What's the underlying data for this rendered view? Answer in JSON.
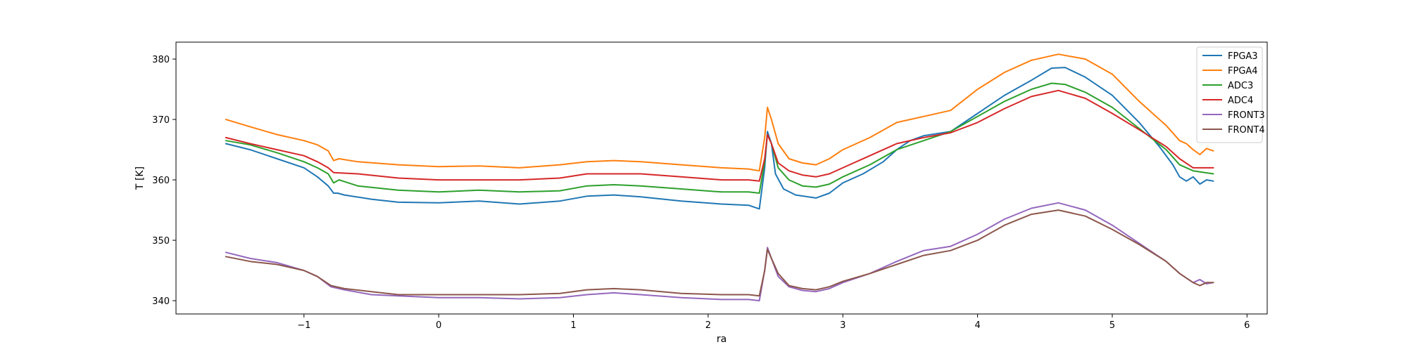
{
  "chart_data": {
    "type": "line",
    "title": "",
    "xlabel": "ra",
    "ylabel": "T [K]",
    "xlim": [
      -1.95,
      6.15
    ],
    "ylim": [
      337.8,
      382.8
    ],
    "xticks": [
      -1,
      0,
      1,
      2,
      3,
      4,
      5,
      6
    ],
    "xtick_labels": [
      "−1",
      "0",
      "1",
      "2",
      "3",
      "4",
      "5",
      "6"
    ],
    "yticks": [
      340,
      350,
      360,
      370,
      380
    ],
    "ytick_labels": [
      "340",
      "350",
      "360",
      "370",
      "380"
    ],
    "grid": false,
    "legend_position": "top-right",
    "series": [
      {
        "name": "FPGA3",
        "color": "#1f77b4",
        "points": [
          [
            -1.58,
            366.0
          ],
          [
            -1.4,
            365.0
          ],
          [
            -1.2,
            363.5
          ],
          [
            -1.0,
            362.0
          ],
          [
            -0.9,
            360.5
          ],
          [
            -0.82,
            359.0
          ],
          [
            -0.78,
            357.8
          ],
          [
            -0.75,
            357.8
          ],
          [
            -0.7,
            357.5
          ],
          [
            -0.5,
            356.8
          ],
          [
            -0.3,
            356.3
          ],
          [
            0.0,
            356.2
          ],
          [
            0.3,
            356.5
          ],
          [
            0.6,
            356.0
          ],
          [
            0.9,
            356.5
          ],
          [
            1.1,
            357.3
          ],
          [
            1.3,
            357.5
          ],
          [
            1.5,
            357.2
          ],
          [
            1.8,
            356.5
          ],
          [
            2.1,
            356.0
          ],
          [
            2.3,
            355.8
          ],
          [
            2.38,
            355.2
          ],
          [
            2.42,
            362.0
          ],
          [
            2.44,
            368.0
          ],
          [
            2.47,
            366.0
          ],
          [
            2.5,
            361.0
          ],
          [
            2.56,
            358.5
          ],
          [
            2.65,
            357.5
          ],
          [
            2.8,
            357.0
          ],
          [
            2.9,
            357.8
          ],
          [
            3.0,
            359.5
          ],
          [
            3.15,
            361.0
          ],
          [
            3.3,
            363.0
          ],
          [
            3.4,
            365.0
          ],
          [
            3.5,
            366.5
          ],
          [
            3.6,
            367.3
          ],
          [
            3.8,
            368.0
          ],
          [
            4.0,
            371.0
          ],
          [
            4.2,
            374.0
          ],
          [
            4.4,
            376.5
          ],
          [
            4.55,
            378.5
          ],
          [
            4.65,
            378.6
          ],
          [
            4.8,
            377.0
          ],
          [
            5.0,
            374.0
          ],
          [
            5.2,
            369.5
          ],
          [
            5.35,
            365.5
          ],
          [
            5.45,
            362.5
          ],
          [
            5.5,
            360.5
          ],
          [
            5.55,
            359.8
          ],
          [
            5.6,
            360.5
          ],
          [
            5.65,
            359.3
          ],
          [
            5.7,
            360.0
          ],
          [
            5.75,
            359.8
          ]
        ]
      },
      {
        "name": "FPGA4",
        "color": "#ff7f0e",
        "points": [
          [
            -1.58,
            370.0
          ],
          [
            -1.4,
            368.8
          ],
          [
            -1.2,
            367.5
          ],
          [
            -1.0,
            366.5
          ],
          [
            -0.9,
            365.8
          ],
          [
            -0.82,
            364.8
          ],
          [
            -0.78,
            363.2
          ],
          [
            -0.74,
            363.5
          ],
          [
            -0.6,
            363.0
          ],
          [
            -0.3,
            362.5
          ],
          [
            0.0,
            362.2
          ],
          [
            0.3,
            362.3
          ],
          [
            0.6,
            362.0
          ],
          [
            0.9,
            362.5
          ],
          [
            1.1,
            363.0
          ],
          [
            1.3,
            363.2
          ],
          [
            1.5,
            363.0
          ],
          [
            1.8,
            362.5
          ],
          [
            2.1,
            362.0
          ],
          [
            2.3,
            361.8
          ],
          [
            2.38,
            361.5
          ],
          [
            2.42,
            367.0
          ],
          [
            2.44,
            372.0
          ],
          [
            2.47,
            370.0
          ],
          [
            2.52,
            366.0
          ],
          [
            2.6,
            363.5
          ],
          [
            2.7,
            362.8
          ],
          [
            2.8,
            362.5
          ],
          [
            2.9,
            363.5
          ],
          [
            3.0,
            365.0
          ],
          [
            3.2,
            367.0
          ],
          [
            3.4,
            369.5
          ],
          [
            3.6,
            370.5
          ],
          [
            3.8,
            371.5
          ],
          [
            4.0,
            375.0
          ],
          [
            4.2,
            377.8
          ],
          [
            4.4,
            379.8
          ],
          [
            4.6,
            380.8
          ],
          [
            4.8,
            380.0
          ],
          [
            5.0,
            377.5
          ],
          [
            5.2,
            373.0
          ],
          [
            5.4,
            369.0
          ],
          [
            5.5,
            366.5
          ],
          [
            5.55,
            366.0
          ],
          [
            5.6,
            365.0
          ],
          [
            5.65,
            364.2
          ],
          [
            5.7,
            365.2
          ],
          [
            5.75,
            364.8
          ]
        ]
      },
      {
        "name": "ADC3",
        "color": "#2ca02c",
        "points": [
          [
            -1.58,
            366.5
          ],
          [
            -1.4,
            365.8
          ],
          [
            -1.2,
            364.5
          ],
          [
            -1.0,
            363.0
          ],
          [
            -0.9,
            362.0
          ],
          [
            -0.82,
            361.0
          ],
          [
            -0.78,
            359.5
          ],
          [
            -0.74,
            360.0
          ],
          [
            -0.6,
            359.0
          ],
          [
            -0.3,
            358.3
          ],
          [
            0.0,
            358.0
          ],
          [
            0.3,
            358.3
          ],
          [
            0.6,
            358.0
          ],
          [
            0.9,
            358.2
          ],
          [
            1.1,
            359.0
          ],
          [
            1.3,
            359.2
          ],
          [
            1.5,
            359.0
          ],
          [
            1.8,
            358.5
          ],
          [
            2.1,
            358.0
          ],
          [
            2.3,
            358.0
          ],
          [
            2.38,
            357.8
          ],
          [
            2.42,
            363.0
          ],
          [
            2.44,
            367.5
          ],
          [
            2.47,
            366.0
          ],
          [
            2.52,
            362.0
          ],
          [
            2.6,
            360.0
          ],
          [
            2.7,
            359.0
          ],
          [
            2.8,
            358.8
          ],
          [
            2.9,
            359.3
          ],
          [
            3.0,
            360.5
          ],
          [
            3.2,
            362.5
          ],
          [
            3.4,
            365.0
          ],
          [
            3.6,
            366.5
          ],
          [
            3.8,
            368.0
          ],
          [
            4.0,
            370.5
          ],
          [
            4.2,
            373.0
          ],
          [
            4.4,
            375.0
          ],
          [
            4.55,
            376.0
          ],
          [
            4.65,
            375.8
          ],
          [
            4.8,
            374.5
          ],
          [
            5.0,
            372.0
          ],
          [
            5.2,
            368.5
          ],
          [
            5.4,
            365.0
          ],
          [
            5.5,
            362.5
          ],
          [
            5.6,
            361.5
          ],
          [
            5.75,
            361.0
          ]
        ]
      },
      {
        "name": "ADC4",
        "color": "#d62728",
        "points": [
          [
            -1.58,
            367.0
          ],
          [
            -1.4,
            366.0
          ],
          [
            -1.2,
            365.0
          ],
          [
            -1.0,
            364.0
          ],
          [
            -0.9,
            363.0
          ],
          [
            -0.82,
            362.0
          ],
          [
            -0.78,
            361.2
          ],
          [
            -0.6,
            361.0
          ],
          [
            -0.3,
            360.3
          ],
          [
            0.0,
            360.0
          ],
          [
            0.3,
            360.0
          ],
          [
            0.6,
            360.0
          ],
          [
            0.9,
            360.3
          ],
          [
            1.1,
            361.0
          ],
          [
            1.3,
            361.0
          ],
          [
            1.5,
            361.0
          ],
          [
            1.8,
            360.5
          ],
          [
            2.1,
            360.0
          ],
          [
            2.3,
            360.0
          ],
          [
            2.38,
            359.8
          ],
          [
            2.42,
            363.5
          ],
          [
            2.44,
            367.5
          ],
          [
            2.47,
            366.0
          ],
          [
            2.52,
            362.8
          ],
          [
            2.6,
            361.5
          ],
          [
            2.7,
            360.8
          ],
          [
            2.8,
            360.5
          ],
          [
            2.9,
            361.0
          ],
          [
            3.0,
            362.0
          ],
          [
            3.2,
            364.0
          ],
          [
            3.4,
            366.0
          ],
          [
            3.6,
            367.0
          ],
          [
            3.8,
            367.8
          ],
          [
            4.0,
            369.5
          ],
          [
            4.2,
            371.8
          ],
          [
            4.4,
            373.8
          ],
          [
            4.6,
            374.8
          ],
          [
            4.8,
            373.5
          ],
          [
            5.0,
            371.0
          ],
          [
            5.2,
            368.3
          ],
          [
            5.4,
            365.5
          ],
          [
            5.5,
            363.5
          ],
          [
            5.6,
            362.0
          ],
          [
            5.75,
            362.0
          ]
        ]
      },
      {
        "name": "FRONT3",
        "color": "#9467bd",
        "points": [
          [
            -1.58,
            348.0
          ],
          [
            -1.4,
            347.0
          ],
          [
            -1.2,
            346.3
          ],
          [
            -1.0,
            345.0
          ],
          [
            -0.9,
            344.0
          ],
          [
            -0.8,
            342.3
          ],
          [
            -0.7,
            341.8
          ],
          [
            -0.5,
            341.0
          ],
          [
            -0.3,
            340.8
          ],
          [
            0.0,
            340.5
          ],
          [
            0.3,
            340.5
          ],
          [
            0.6,
            340.3
          ],
          [
            0.9,
            340.5
          ],
          [
            1.1,
            341.0
          ],
          [
            1.3,
            341.3
          ],
          [
            1.5,
            341.0
          ],
          [
            1.8,
            340.5
          ],
          [
            2.1,
            340.2
          ],
          [
            2.3,
            340.2
          ],
          [
            2.38,
            340.0
          ],
          [
            2.42,
            345.0
          ],
          [
            2.44,
            348.8
          ],
          [
            2.47,
            347.0
          ],
          [
            2.52,
            344.0
          ],
          [
            2.6,
            342.3
          ],
          [
            2.7,
            341.7
          ],
          [
            2.8,
            341.5
          ],
          [
            2.9,
            342.0
          ],
          [
            3.0,
            343.0
          ],
          [
            3.2,
            344.5
          ],
          [
            3.4,
            346.5
          ],
          [
            3.6,
            348.3
          ],
          [
            3.8,
            349.0
          ],
          [
            4.0,
            351.0
          ],
          [
            4.2,
            353.5
          ],
          [
            4.4,
            355.3
          ],
          [
            4.6,
            356.2
          ],
          [
            4.8,
            355.0
          ],
          [
            5.0,
            352.5
          ],
          [
            5.2,
            349.5
          ],
          [
            5.4,
            346.5
          ],
          [
            5.5,
            344.5
          ],
          [
            5.6,
            343.0
          ],
          [
            5.65,
            343.5
          ],
          [
            5.7,
            342.8
          ],
          [
            5.75,
            343.0
          ]
        ]
      },
      {
        "name": "FRONT4",
        "color": "#8c564b",
        "points": [
          [
            -1.58,
            347.3
          ],
          [
            -1.4,
            346.5
          ],
          [
            -1.2,
            346.0
          ],
          [
            -1.0,
            345.0
          ],
          [
            -0.9,
            344.0
          ],
          [
            -0.8,
            342.5
          ],
          [
            -0.7,
            342.0
          ],
          [
            -0.5,
            341.5
          ],
          [
            -0.3,
            341.0
          ],
          [
            0.0,
            341.0
          ],
          [
            0.3,
            341.0
          ],
          [
            0.6,
            341.0
          ],
          [
            0.9,
            341.2
          ],
          [
            1.1,
            341.8
          ],
          [
            1.3,
            342.0
          ],
          [
            1.5,
            341.8
          ],
          [
            1.8,
            341.2
          ],
          [
            2.1,
            341.0
          ],
          [
            2.3,
            341.0
          ],
          [
            2.38,
            340.8
          ],
          [
            2.42,
            345.0
          ],
          [
            2.44,
            348.5
          ],
          [
            2.47,
            347.0
          ],
          [
            2.52,
            344.5
          ],
          [
            2.6,
            342.5
          ],
          [
            2.7,
            342.0
          ],
          [
            2.8,
            341.8
          ],
          [
            2.9,
            342.3
          ],
          [
            3.0,
            343.2
          ],
          [
            3.2,
            344.5
          ],
          [
            3.4,
            346.0
          ],
          [
            3.6,
            347.5
          ],
          [
            3.8,
            348.3
          ],
          [
            4.0,
            350.0
          ],
          [
            4.2,
            352.5
          ],
          [
            4.4,
            354.3
          ],
          [
            4.6,
            355.0
          ],
          [
            4.8,
            354.0
          ],
          [
            5.0,
            351.8
          ],
          [
            5.2,
            349.3
          ],
          [
            5.4,
            346.5
          ],
          [
            5.5,
            344.5
          ],
          [
            5.6,
            343.0
          ],
          [
            5.65,
            342.5
          ],
          [
            5.7,
            343.0
          ],
          [
            5.75,
            343.0
          ]
        ]
      }
    ]
  }
}
